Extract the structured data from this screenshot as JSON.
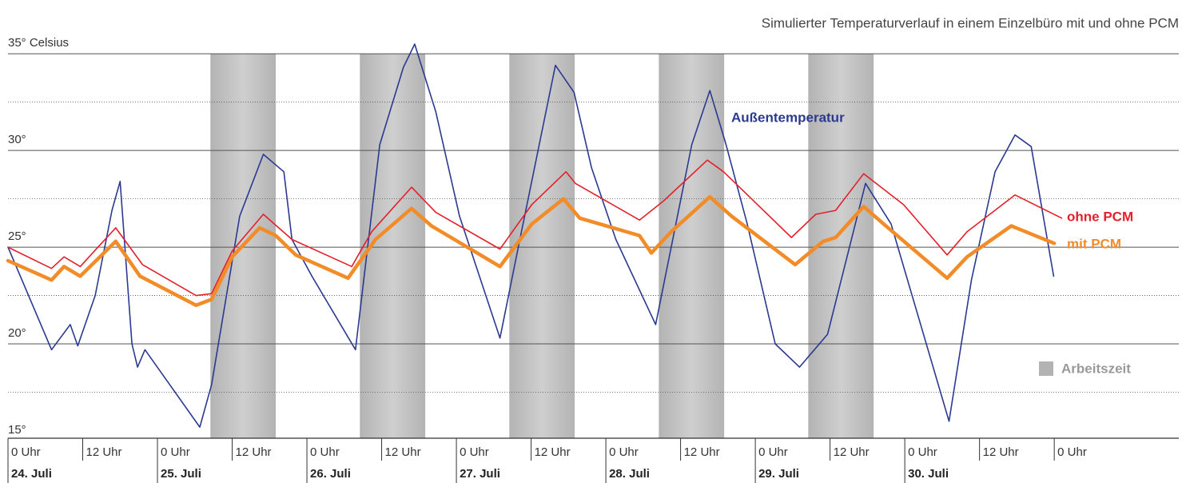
{
  "chart_data": {
    "type": "line",
    "title": "Simulierter Temperaturverlauf in einem Einzelbüro mit und ohne PCM",
    "xlim": [
      0,
      188
    ],
    "ylim": [
      15,
      36
    ],
    "yticks": [
      {
        "value": 15,
        "label": "15°"
      },
      {
        "value": 20,
        "label": "20°"
      },
      {
        "value": 25,
        "label": "25°"
      },
      {
        "value": 30,
        "label": "30°"
      },
      {
        "value": 35,
        "label": "35° Celsius"
      }
    ],
    "minor_yticks": [
      17.5,
      22.5,
      27.5,
      32.5
    ],
    "xticks": [
      {
        "value": 0,
        "label": "0 Uhr"
      },
      {
        "value": 12,
        "label": "12 Uhr"
      },
      {
        "value": 24,
        "label": "0 Uhr"
      },
      {
        "value": 36,
        "label": "12 Uhr"
      },
      {
        "value": 48,
        "label": "0 Uhr"
      },
      {
        "value": 60,
        "label": "12 Uhr"
      },
      {
        "value": 72,
        "label": "0 Uhr"
      },
      {
        "value": 84,
        "label": "12 Uhr"
      },
      {
        "value": 96,
        "label": "0 Uhr"
      },
      {
        "value": 108,
        "label": "12 Uhr"
      },
      {
        "value": 120,
        "label": "0 Uhr"
      },
      {
        "value": 132,
        "label": "12 Uhr"
      },
      {
        "value": 144,
        "label": "0 Uhr"
      },
      {
        "value": 156,
        "label": "12 Uhr"
      },
      {
        "value": 168,
        "label": "0 Uhr"
      }
    ],
    "days": [
      {
        "value": 0,
        "label": "24. Juli"
      },
      {
        "value": 24,
        "label": "25. Juli"
      },
      {
        "value": 48,
        "label": "26. Juli"
      },
      {
        "value": 72,
        "label": "27. Juli"
      },
      {
        "value": 96,
        "label": "28. Juli"
      },
      {
        "value": 120,
        "label": "29. Juli"
      },
      {
        "value": 144,
        "label": "30. Juli"
      }
    ],
    "shaded_periods": {
      "name": "Arbeitszeit",
      "color": "#b3b3b3",
      "ranges": [
        [
          32.5,
          43
        ],
        [
          56.5,
          67
        ],
        [
          80.5,
          91
        ],
        [
          104.5,
          115
        ],
        [
          128.5,
          139
        ]
      ]
    },
    "series": [
      {
        "name": "Außentemperatur",
        "color": "#2b3990",
        "width": 1.6,
        "x": [
          0,
          7,
          10,
          11.2,
          14,
          16.7,
          18,
          19.9,
          20.8,
          22,
          30.8,
          32.7,
          37.2,
          41,
          44.3,
          45.6,
          48.8,
          55.8,
          59.7,
          63.5,
          65.3,
          68.7,
          72.5,
          79,
          82.2,
          87.9,
          90.9,
          93.7,
          97.6,
          104,
          109.8,
          112.7,
          115.3,
          118.7,
          123.2,
          127.1,
          131.6,
          137.7,
          141.8,
          151.1,
          154.7,
          158.5,
          161.7,
          164.3,
          167.9
        ],
        "values": [
          25.0,
          19.7,
          21.0,
          19.9,
          22.5,
          26.9,
          28.4,
          20.0,
          18.8,
          19.7,
          15.7,
          17.9,
          26.6,
          29.8,
          28.9,
          25.4,
          23.5,
          19.7,
          30.3,
          34.3,
          35.5,
          32.0,
          26.6,
          20.3,
          25.4,
          34.4,
          33.0,
          29.1,
          25.4,
          21.0,
          30.3,
          33.1,
          30.3,
          26.2,
          20.0,
          18.8,
          20.5,
          28.3,
          26.2,
          16.0,
          23.3,
          28.9,
          30.8,
          30.2,
          23.5
        ]
      },
      {
        "name": "ohne PCM",
        "color": "#e4202a",
        "width": 1.6,
        "x": [
          0,
          7,
          9,
          11.6,
          17.3,
          21.6,
          30.2,
          32.7,
          36,
          41,
          45.6,
          55.2,
          58.4,
          64.8,
          68.7,
          79,
          84.1,
          89.6,
          91.1,
          101.4,
          105.3,
          112.3,
          114.9,
          125.8,
          129.7,
          132.9,
          137.4,
          143.8,
          150.8,
          154,
          161.7,
          169.2
        ],
        "values": [
          25.0,
          23.9,
          24.5,
          24.0,
          26.0,
          24.1,
          22.5,
          22.6,
          24.8,
          26.7,
          25.4,
          24.0,
          25.8,
          28.1,
          26.8,
          24.9,
          27.2,
          28.9,
          28.3,
          26.4,
          27.4,
          29.5,
          28.9,
          25.5,
          26.7,
          26.9,
          28.8,
          27.2,
          24.6,
          25.8,
          27.7,
          26.5
        ]
      },
      {
        "name": "mit PCM",
        "color": "#f28c28",
        "width": 4.5,
        "x": [
          0,
          7,
          9,
          11.6,
          17.3,
          21.2,
          30.2,
          32.7,
          36,
          40.4,
          43,
          46.2,
          54.6,
          59,
          64.8,
          68,
          79,
          84.1,
          89.2,
          91.8,
          101.4,
          103.3,
          106.5,
          112.7,
          116.2,
          126.4,
          130.9,
          132.9,
          137.4,
          140.6,
          150.8,
          154,
          161.1,
          168
        ],
        "values": [
          24.3,
          23.3,
          24.0,
          23.5,
          25.3,
          23.5,
          22.0,
          22.3,
          24.5,
          26.0,
          25.6,
          24.6,
          23.4,
          25.4,
          27.0,
          26.1,
          24.0,
          26.2,
          27.5,
          26.5,
          25.6,
          24.7,
          25.8,
          27.6,
          26.6,
          24.1,
          25.3,
          25.5,
          27.1,
          26.2,
          23.4,
          24.5,
          26.1,
          25.2
        ]
      }
    ]
  }
}
